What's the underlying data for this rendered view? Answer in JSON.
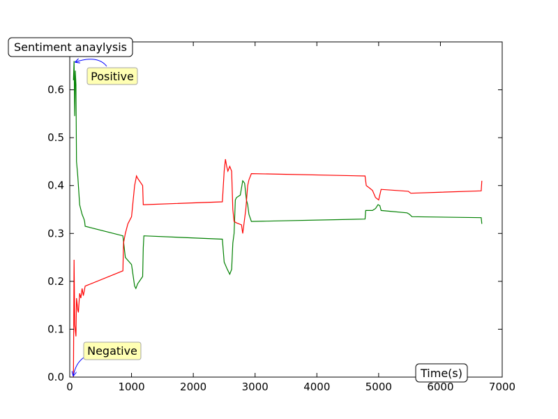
{
  "chart_data": {
    "type": "line",
    "title": "Sentiment anaylysis",
    "xlabel": "Time(s)",
    "ylabel": "",
    "xlim": [
      0,
      7000
    ],
    "ylim": [
      0,
      0.7
    ],
    "x_ticks": [
      0,
      1000,
      2000,
      3000,
      4000,
      5000,
      6000,
      7000
    ],
    "y_ticks": [
      0.0,
      0.1,
      0.2,
      0.3,
      0.4,
      0.5,
      0.6
    ],
    "x_tick_labels": [
      "0",
      "1000",
      "2000",
      "3000",
      "4000",
      "5000",
      "6000",
      "7000"
    ],
    "y_tick_labels": [
      "0.0",
      "0.1",
      "0.2",
      "0.3",
      "0.4",
      "0.5",
      "0.6"
    ],
    "grid": false,
    "annotations": [
      {
        "text": "Positive",
        "point": [
          80,
          0.66
        ],
        "text_at": [
          350,
          0.625
        ]
      },
      {
        "text": "Negative",
        "point": [
          60,
          0.0
        ],
        "text_at": [
          350,
          0.05
        ]
      }
    ],
    "series": [
      {
        "color": "#008000",
        "points": [
          [
            60,
            0.62
          ],
          [
            70,
            0.66
          ],
          [
            80,
            0.545
          ],
          [
            90,
            0.64
          ],
          [
            100,
            0.61
          ],
          [
            110,
            0.45
          ],
          [
            130,
            0.42
          ],
          [
            140,
            0.4
          ],
          [
            160,
            0.36
          ],
          [
            180,
            0.35
          ],
          [
            200,
            0.34
          ],
          [
            230,
            0.33
          ],
          [
            240,
            0.325
          ],
          [
            250,
            0.315
          ],
          [
            860,
            0.295
          ],
          [
            900,
            0.25
          ],
          [
            1000,
            0.235
          ],
          [
            1050,
            0.19
          ],
          [
            1070,
            0.185
          ],
          [
            1100,
            0.195
          ],
          [
            1180,
            0.21
          ],
          [
            1190,
            0.27
          ],
          [
            1200,
            0.295
          ],
          [
            2470,
            0.288
          ],
          [
            2500,
            0.24
          ],
          [
            2550,
            0.225
          ],
          [
            2590,
            0.215
          ],
          [
            2620,
            0.225
          ],
          [
            2640,
            0.28
          ],
          [
            2660,
            0.3
          ],
          [
            2680,
            0.37
          ],
          [
            2700,
            0.375
          ],
          [
            2760,
            0.38
          ],
          [
            2800,
            0.41
          ],
          [
            2830,
            0.405
          ],
          [
            2860,
            0.37
          ],
          [
            2880,
            0.36
          ],
          [
            2900,
            0.34
          ],
          [
            2940,
            0.325
          ],
          [
            4780,
            0.33
          ],
          [
            4790,
            0.348
          ],
          [
            4900,
            0.348
          ],
          [
            4950,
            0.352
          ],
          [
            4990,
            0.36
          ],
          [
            5020,
            0.358
          ],
          [
            5040,
            0.348
          ],
          [
            5460,
            0.343
          ],
          [
            5500,
            0.34
          ],
          [
            5540,
            0.335
          ],
          [
            6660,
            0.333
          ],
          [
            6670,
            0.32
          ]
        ]
      },
      {
        "color": "#ff0000",
        "points": [
          [
            60,
            0.0
          ],
          [
            70,
            0.245
          ],
          [
            80,
            0.11
          ],
          [
            100,
            0.085
          ],
          [
            110,
            0.165
          ],
          [
            130,
            0.14
          ],
          [
            140,
            0.135
          ],
          [
            160,
            0.175
          ],
          [
            180,
            0.165
          ],
          [
            200,
            0.185
          ],
          [
            220,
            0.17
          ],
          [
            250,
            0.19
          ],
          [
            860,
            0.222
          ],
          [
            870,
            0.28
          ],
          [
            900,
            0.3
          ],
          [
            940,
            0.32
          ],
          [
            1000,
            0.335
          ],
          [
            1050,
            0.4
          ],
          [
            1080,
            0.42
          ],
          [
            1100,
            0.415
          ],
          [
            1180,
            0.4
          ],
          [
            1190,
            0.36
          ],
          [
            1200,
            0.36
          ],
          [
            2470,
            0.366
          ],
          [
            2500,
            0.43
          ],
          [
            2520,
            0.455
          ],
          [
            2540,
            0.44
          ],
          [
            2560,
            0.43
          ],
          [
            2590,
            0.44
          ],
          [
            2620,
            0.43
          ],
          [
            2640,
            0.35
          ],
          [
            2660,
            0.325
          ],
          [
            2700,
            0.322
          ],
          [
            2780,
            0.318
          ],
          [
            2800,
            0.3
          ],
          [
            2850,
            0.35
          ],
          [
            2880,
            0.4
          ],
          [
            2900,
            0.412
          ],
          [
            2940,
            0.425
          ],
          [
            4780,
            0.42
          ],
          [
            4800,
            0.4
          ],
          [
            4850,
            0.395
          ],
          [
            4900,
            0.39
          ],
          [
            4950,
            0.375
          ],
          [
            5000,
            0.37
          ],
          [
            5040,
            0.392
          ],
          [
            5480,
            0.388
          ],
          [
            5520,
            0.384
          ],
          [
            6660,
            0.389
          ],
          [
            6670,
            0.41
          ]
        ]
      }
    ]
  }
}
